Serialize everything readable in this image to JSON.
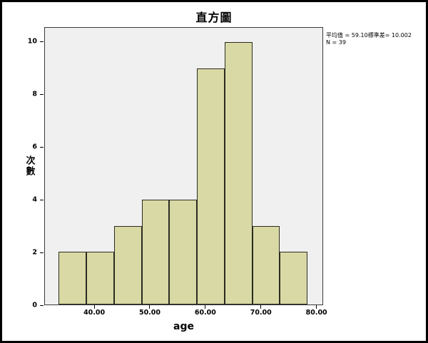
{
  "chart_data": {
    "type": "histogram",
    "title": "直方圖",
    "xlabel": "age",
    "ylabel": "次數",
    "bin_edges": [
      33.5,
      38.5,
      43.5,
      48.5,
      53.5,
      58.5,
      63.5,
      68.5,
      73.5,
      78.5
    ],
    "frequencies": [
      2,
      2,
      3,
      4,
      4,
      9,
      10,
      3,
      2
    ],
    "x_range": [
      31,
      81.2
    ],
    "y_range": [
      0,
      10.55
    ],
    "x_ticks": [
      {
        "value": 40,
        "label": "40.00"
      },
      {
        "value": 50,
        "label": "50.00"
      },
      {
        "value": 60,
        "label": "60.00"
      },
      {
        "value": 70,
        "label": "70.00"
      },
      {
        "value": 80,
        "label": "80.00"
      }
    ],
    "y_ticks": [
      {
        "value": 0,
        "label": "0"
      },
      {
        "value": 2,
        "label": "2"
      },
      {
        "value": 4,
        "label": "4"
      },
      {
        "value": 6,
        "label": "6"
      },
      {
        "value": 8,
        "label": "8"
      },
      {
        "value": 10,
        "label": "10"
      }
    ],
    "annotation": {
      "line1": "平均值 = 59.10標準差= 10.002",
      "line2": "N = 39"
    },
    "stats": {
      "mean": "59.10",
      "std_dev": "10.002",
      "n": "39"
    },
    "legend_position": "none",
    "grid": false,
    "colors": {
      "bar_fill": "#d9d9a6",
      "bar_border": "#2b2b20",
      "plot_bg": "#f0f0f0",
      "frame": "#3a3a3a"
    }
  }
}
